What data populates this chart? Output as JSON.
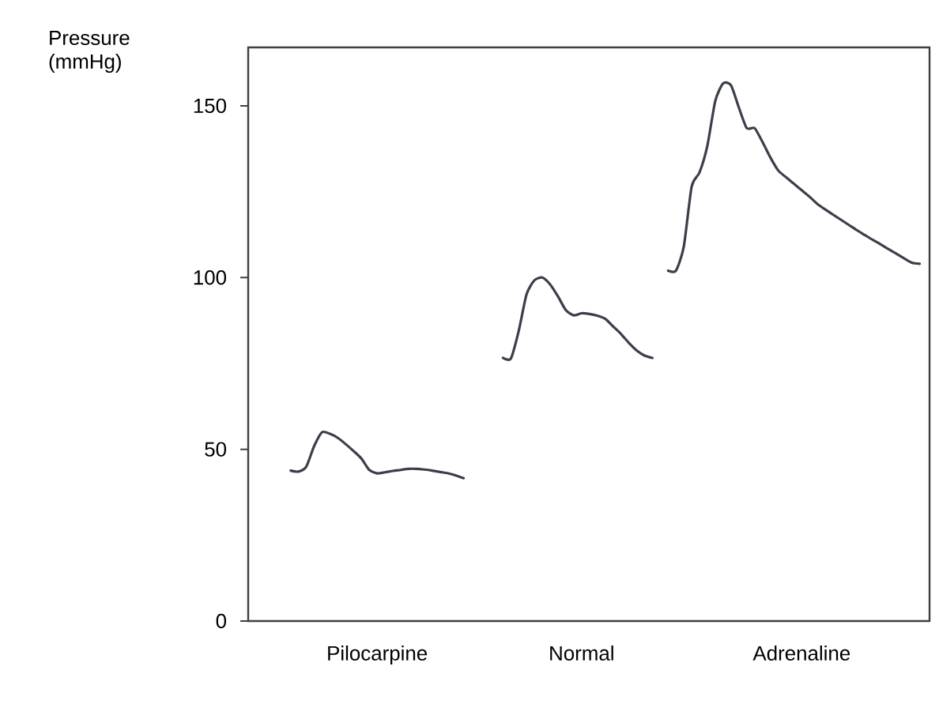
{
  "chart_data": {
    "type": "line",
    "ylabel": "Pressure (mmHg)",
    "categories": [
      null,
      null,
      null,
      null,
      null,
      null,
      null,
      null,
      null,
      null,
      null,
      null,
      null,
      null,
      null,
      "Pilocarpine",
      null,
      null,
      null,
      null,
      null,
      null,
      null,
      null,
      null,
      null,
      null,
      null,
      null,
      null,
      null,
      null,
      null,
      null,
      null,
      null,
      null,
      null,
      null,
      null,
      null,
      "Normal",
      null,
      null,
      null,
      null,
      null,
      null,
      null,
      null,
      null,
      null,
      null,
      null,
      null,
      null,
      null,
      null,
      null,
      null,
      null,
      null,
      null,
      null,
      null,
      null,
      null,
      null,
      null,
      "Adrenaline",
      null,
      null,
      null,
      null,
      null,
      null,
      null,
      null,
      null,
      null,
      null,
      null,
      null,
      null,
      null,
      null
    ],
    "ylim": [
      0,
      167
    ],
    "yticks": [
      0,
      50,
      100,
      150
    ],
    "marker": "none",
    "line_style": "solid",
    "series": [
      {
        "color": "#3a3f4a",
        "values": [
          null,
          null,
          null,
          null,
          43.8,
          43.5,
          45,
          51,
          55,
          54.5,
          53.3,
          51.5,
          49.5,
          47.3,
          44,
          43,
          43.3,
          43.7,
          44,
          44.3,
          44.3,
          44.1,
          43.8,
          43.4,
          43,
          42.4,
          41.6,
          null,
          null,
          null,
          null,
          null,
          null,
          null,
          null,
          null,
          null,
          null,
          null,
          null,
          null,
          null,
          null,
          null,
          null,
          null,
          null,
          null,
          null,
          null,
          null,
          null,
          null,
          null,
          null,
          null,
          null,
          null,
          null,
          null,
          null,
          null,
          null,
          null,
          null,
          null,
          null,
          null,
          null,
          null,
          null,
          null,
          null,
          null,
          null,
          null,
          null,
          null,
          null,
          null,
          null,
          null,
          null,
          null,
          null,
          null
        ]
      },
      {
        "color": "#3a3f4a",
        "values": [
          null,
          null,
          null,
          null,
          null,
          null,
          null,
          null,
          null,
          null,
          null,
          null,
          null,
          null,
          null,
          null,
          null,
          null,
          null,
          null,
          null,
          null,
          null,
          null,
          null,
          null,
          null,
          null,
          null,
          null,
          null,
          76.6,
          76.4,
          84.4,
          95.1,
          99.2,
          100,
          98,
          94.5,
          90.5,
          89,
          89.6,
          89.4,
          88.9,
          88,
          85.8,
          83.6,
          81,
          78.8,
          77.3,
          76.6,
          null,
          null,
          null,
          null,
          null,
          null,
          null,
          null,
          null,
          null,
          null,
          null,
          null,
          null,
          null,
          null,
          null,
          null,
          null,
          null,
          null,
          null,
          null,
          null,
          null,
          null,
          null,
          null,
          null,
          null,
          null,
          null,
          null,
          null,
          null
        ]
      },
      {
        "color": "#3a3f4a",
        "values": [
          null,
          null,
          null,
          null,
          null,
          null,
          null,
          null,
          null,
          null,
          null,
          null,
          null,
          null,
          null,
          null,
          null,
          null,
          null,
          null,
          null,
          null,
          null,
          null,
          null,
          null,
          null,
          null,
          null,
          null,
          null,
          null,
          null,
          null,
          null,
          null,
          null,
          null,
          null,
          null,
          null,
          null,
          null,
          null,
          null,
          null,
          null,
          null,
          null,
          null,
          null,
          null,
          102,
          102,
          109,
          126.5,
          130.6,
          138.4,
          151.4,
          156.5,
          156,
          149.5,
          143.5,
          143.5,
          139.5,
          135,
          131.2,
          129.2,
          127.3,
          125.4,
          123.5,
          121.4,
          119.8,
          118.3,
          116.8,
          115.3,
          113.8,
          112.4,
          111,
          109.7,
          108.3,
          107,
          105.6,
          104.3,
          104,
          null
        ]
      }
    ]
  }
}
